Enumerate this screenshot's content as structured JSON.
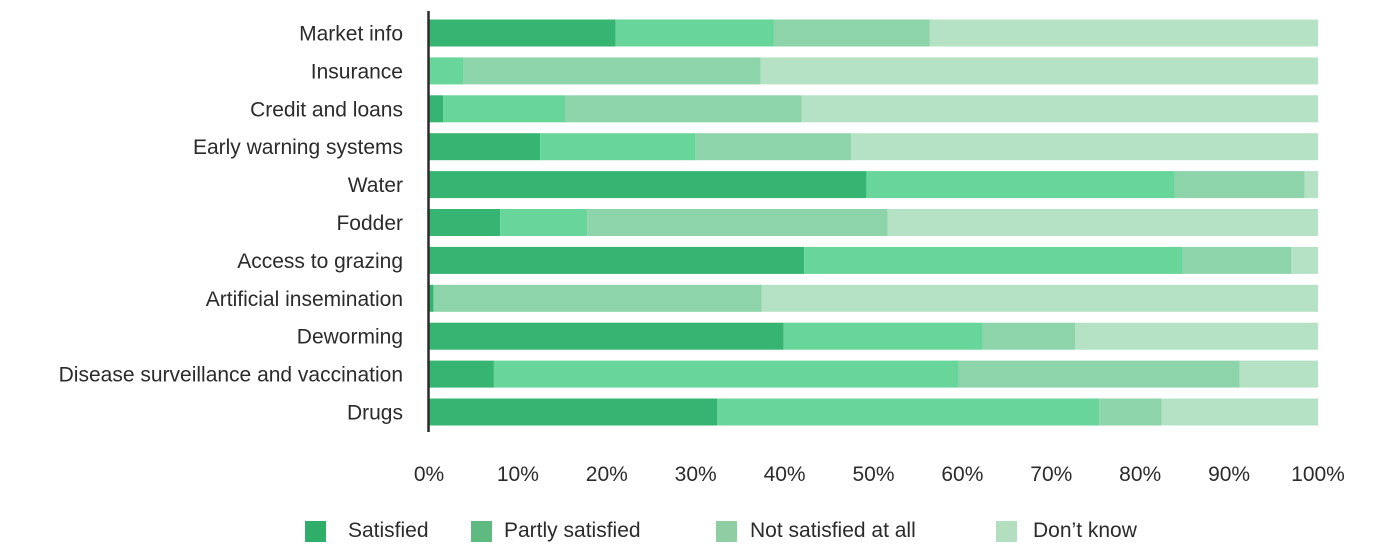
{
  "chart_data": {
    "type": "bar",
    "orientation": "horizontal",
    "stacked": true,
    "title": "",
    "xlabel": "",
    "ylabel": "",
    "xlim": [
      0,
      100
    ],
    "x_ticks": [
      "0%",
      "10%",
      "20%",
      "30%",
      "40%",
      "50%",
      "60%",
      "70%",
      "80%",
      "90%",
      "100%"
    ],
    "grid": false,
    "legend_position": "bottom",
    "categories": [
      "Market info",
      "Insurance",
      "Credit and loans",
      "Early warning systems",
      "Water",
      "Fodder",
      "Access to grazing",
      "Artificial insemination",
      "Deworming",
      "Disease surveillance and vaccination",
      "Drugs"
    ],
    "series": [
      {
        "name": "Satisfied",
        "color": "#35b571",
        "legend_color": "#2fae6a",
        "values": [
          21,
          0,
          1.6,
          12.5,
          49.2,
          8,
          42.2,
          0.5,
          39.9,
          7.3,
          32.4
        ]
      },
      {
        "name": "Partly satisfied",
        "color": "#68d59b",
        "legend_color": "#5fba82",
        "values": [
          17.8,
          3.9,
          13.7,
          17.5,
          34.7,
          9.8,
          42.6,
          0,
          22.4,
          52.3,
          43
        ]
      },
      {
        "name": "Not satisfied at all",
        "color": "#8ed4aa",
        "legend_color": "#8fcda3",
        "values": [
          17.5,
          33.4,
          26.6,
          17.5,
          14.6,
          33.8,
          12.2,
          36.9,
          10.4,
          31.6,
          7
        ]
      },
      {
        "name": "Don’t know",
        "color": "#b5e1c5",
        "legend_color": "#b3dfc0",
        "values": [
          43.7,
          62.7,
          58.1,
          52.5,
          1.5,
          48.4,
          3,
          62.6,
          27.3,
          8.8,
          17.6
        ]
      }
    ]
  }
}
